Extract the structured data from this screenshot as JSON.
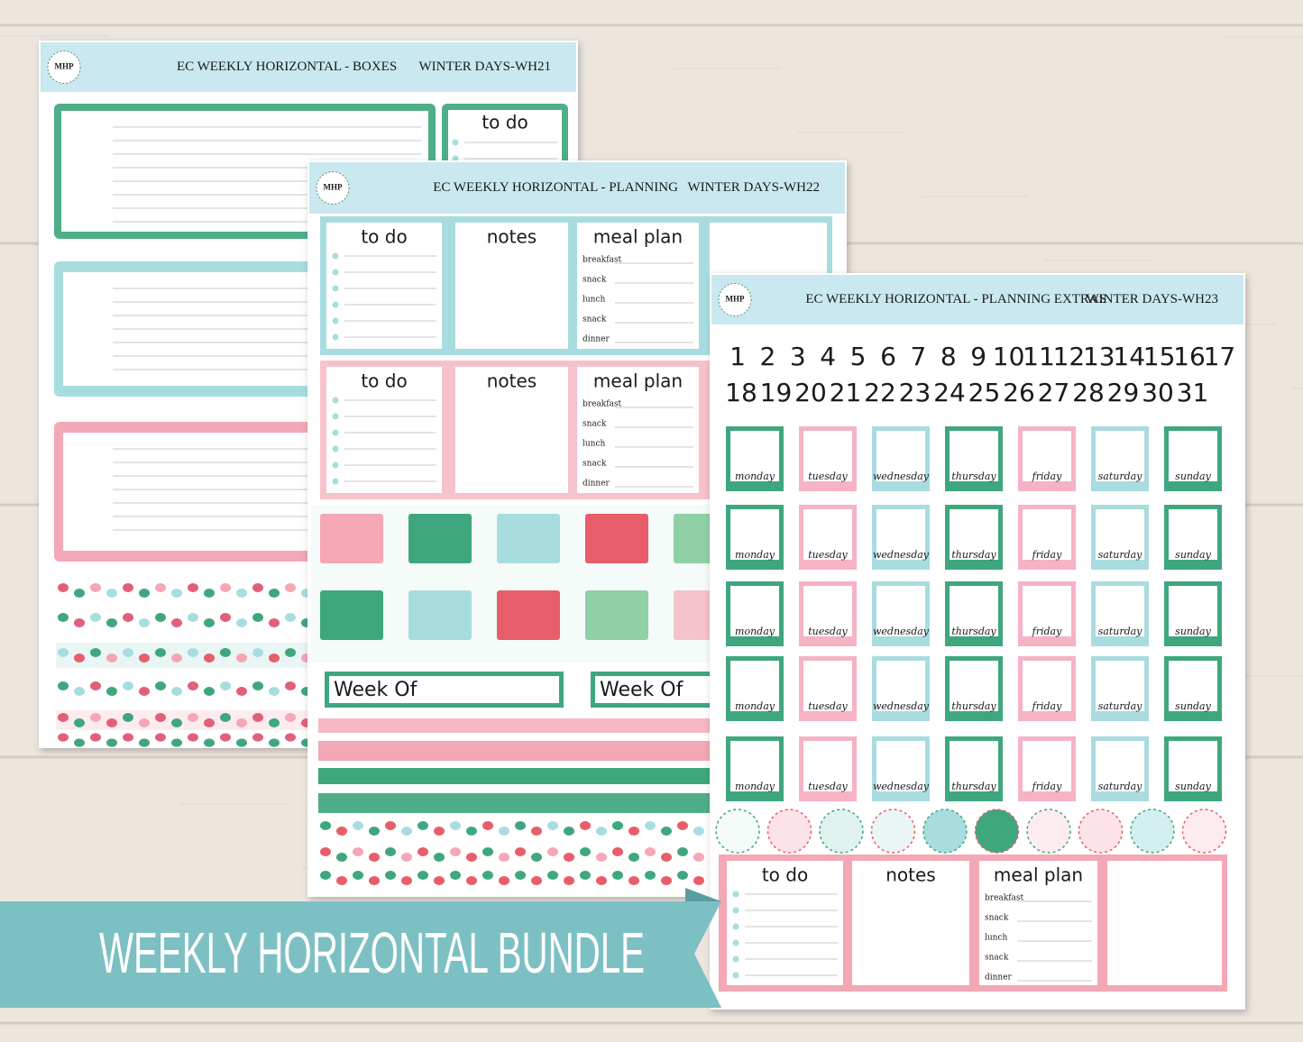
{
  "banner": "WEEKLY HORIZONTAL BUNDLE",
  "sheets": [
    {
      "logo": "MHP",
      "title": "EC WEEKLY HORIZONTAL - BOXES",
      "code": "WINTER DAYS-WH21",
      "todo": "to do"
    },
    {
      "logo": "MHP",
      "title": "EC WEEKLY HORIZONTAL - PLANNING",
      "code": "WINTER DAYS-WH22",
      "planners": [
        {
          "todo": "to do",
          "notes": "notes",
          "meal_plan": "meal plan",
          "meals": [
            "breakfast",
            "snack",
            "lunch",
            "snack",
            "dinner"
          ]
        },
        {
          "todo": "to do",
          "notes": "notes",
          "meal_plan": "meal plan",
          "meals": [
            "breakfast",
            "snack",
            "lunch",
            "snack",
            "dinner"
          ]
        }
      ],
      "week_of": [
        "Week Of",
        "Week Of"
      ]
    },
    {
      "logo": "MHP",
      "title": "EC WEEKLY HORIZONTAL - PLANNING EXTRAS",
      "code": "WINTER DAYS-WH23",
      "dates": [
        1,
        2,
        3,
        4,
        5,
        6,
        7,
        8,
        9,
        10,
        11,
        12,
        13,
        14,
        15,
        16,
        17,
        18,
        19,
        20,
        21,
        22,
        23,
        24,
        25,
        26,
        27,
        28,
        29,
        30,
        31
      ],
      "weekdays": [
        "monday",
        "tuesday",
        "wednesday",
        "thursday",
        "friday",
        "saturday",
        "sunday"
      ],
      "planner": {
        "todo": "to do",
        "notes": "notes",
        "meal_plan": "meal plan",
        "meals": [
          "breakfast",
          "snack",
          "lunch",
          "snack",
          "dinner"
        ]
      }
    }
  ]
}
